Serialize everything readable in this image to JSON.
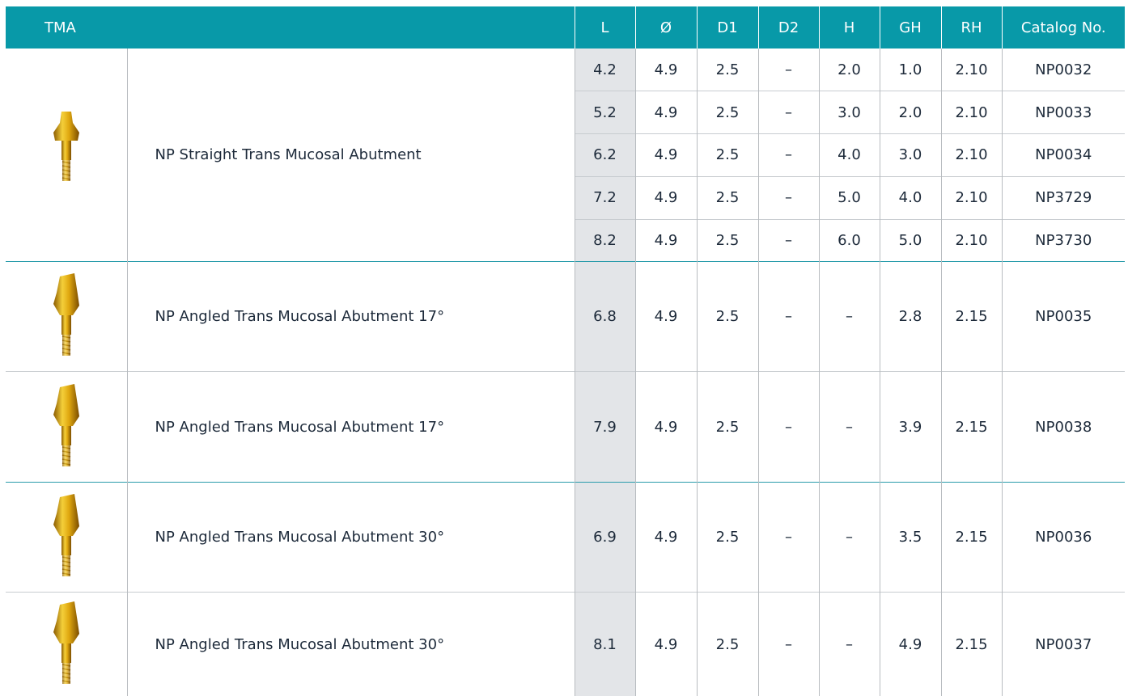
{
  "header": {
    "columns": [
      "TMA",
      "L",
      "Ø",
      "D1",
      "D2",
      "H",
      "GH",
      "RH",
      "Catalog No."
    ]
  },
  "groups": [
    {
      "name": "NP Straight Trans Mucosal Abutment",
      "rows": [
        [
          "4.2",
          "4.9",
          "2.5",
          "–",
          "2.0",
          "1.0",
          "2.10",
          "NP0032"
        ],
        [
          "5.2",
          "4.9",
          "2.5",
          "–",
          "3.0",
          "2.0",
          "2.10",
          "NP0033"
        ],
        [
          "6.2",
          "4.9",
          "2.5",
          "–",
          "4.0",
          "3.0",
          "2.10",
          "NP0034"
        ],
        [
          "7.2",
          "4.9",
          "2.5",
          "–",
          "5.0",
          "4.0",
          "2.10",
          "NP3729"
        ],
        [
          "8.2",
          "4.9",
          "2.5",
          "–",
          "6.0",
          "5.0",
          "2.10",
          "NP3730"
        ]
      ]
    },
    {
      "name": "NP Angled Trans Mucosal Abutment 17°",
      "rows": [
        [
          "6.8",
          "4.9",
          "2.5",
          "–",
          "–",
          "2.8",
          "2.15",
          "NP0035"
        ]
      ]
    },
    {
      "name": "NP Angled Trans Mucosal Abutment 17°",
      "rows": [
        [
          "7.9",
          "4.9",
          "2.5",
          "–",
          "–",
          "3.9",
          "2.15",
          "NP0038"
        ]
      ]
    },
    {
      "name": "NP Angled Trans Mucosal Abutment 30°",
      "rows": [
        [
          "6.9",
          "4.9",
          "2.5",
          "–",
          "–",
          "3.5",
          "2.15",
          "NP0036"
        ]
      ]
    },
    {
      "name": "NP Angled Trans Mucosal Abutment 30°",
      "rows": [
        [
          "8.1",
          "4.9",
          "2.5",
          "–",
          "–",
          "4.9",
          "2.15",
          "NP0037"
        ]
      ]
    }
  ]
}
